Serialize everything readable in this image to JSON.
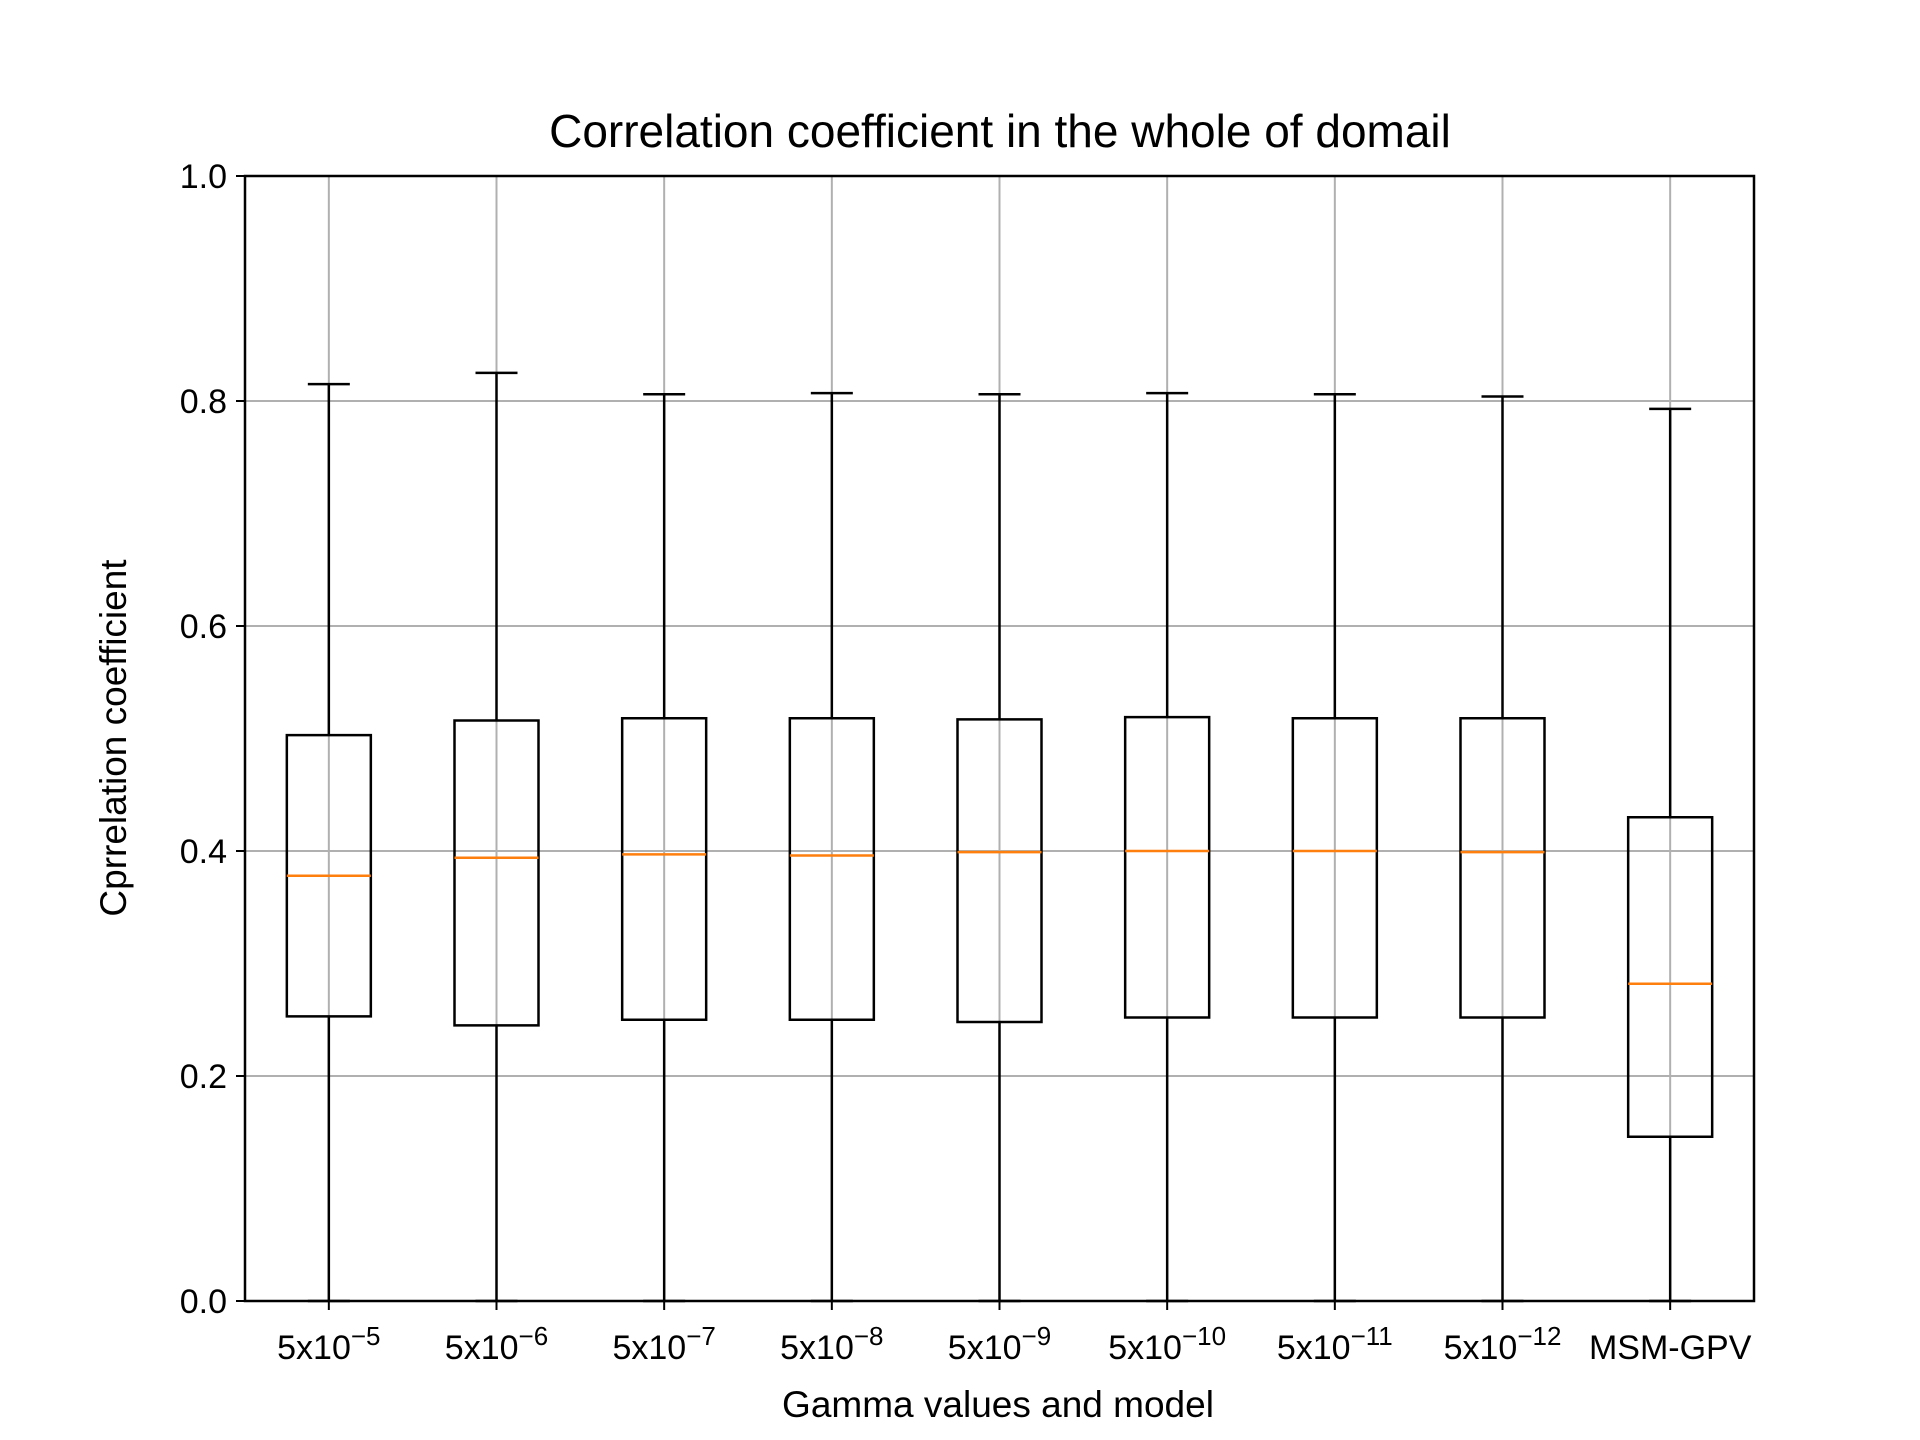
{
  "chart_data": {
    "type": "box",
    "title": "Correlation coefficient in the whole of domail",
    "xlabel": "Gamma values and model",
    "ylabel": "Cprrelation coefficient",
    "ylim": [
      0.0,
      1.0
    ],
    "yticks": [
      "0.0",
      "0.2",
      "0.4",
      "0.6",
      "0.8",
      "1.0"
    ],
    "grid": true,
    "categories": [
      {
        "base": "5x10",
        "exp": "−5"
      },
      {
        "base": "5x10",
        "exp": "−6"
      },
      {
        "base": "5x10",
        "exp": "−7"
      },
      {
        "base": "5x10",
        "exp": "−8"
      },
      {
        "base": "5x10",
        "exp": "−9"
      },
      {
        "base": "5x10",
        "exp": "−10"
      },
      {
        "base": "5x10",
        "exp": "−11"
      },
      {
        "base": "5x10",
        "exp": "−12"
      },
      {
        "base": "MSM-GPV",
        "exp": ""
      }
    ],
    "boxes": [
      {
        "whisker_low": 0.0,
        "q1": 0.253,
        "median": 0.378,
        "q3": 0.503,
        "whisker_high": 0.815
      },
      {
        "whisker_low": 0.0,
        "q1": 0.245,
        "median": 0.394,
        "q3": 0.516,
        "whisker_high": 0.825
      },
      {
        "whisker_low": 0.0,
        "q1": 0.25,
        "median": 0.397,
        "q3": 0.518,
        "whisker_high": 0.806
      },
      {
        "whisker_low": 0.0,
        "q1": 0.25,
        "median": 0.396,
        "q3": 0.518,
        "whisker_high": 0.807
      },
      {
        "whisker_low": 0.0,
        "q1": 0.248,
        "median": 0.399,
        "q3": 0.517,
        "whisker_high": 0.806
      },
      {
        "whisker_low": 0.0,
        "q1": 0.252,
        "median": 0.4,
        "q3": 0.519,
        "whisker_high": 0.807
      },
      {
        "whisker_low": 0.0,
        "q1": 0.252,
        "median": 0.4,
        "q3": 0.518,
        "whisker_high": 0.806
      },
      {
        "whisker_low": 0.0,
        "q1": 0.252,
        "median": 0.399,
        "q3": 0.518,
        "whisker_high": 0.804
      },
      {
        "whisker_low": 0.0,
        "q1": 0.146,
        "median": 0.282,
        "q3": 0.43,
        "whisker_high": 0.793
      }
    ],
    "colors": {
      "box": "#000000",
      "median": "#ff7f0e",
      "grid": "#b0b0b0"
    }
  }
}
